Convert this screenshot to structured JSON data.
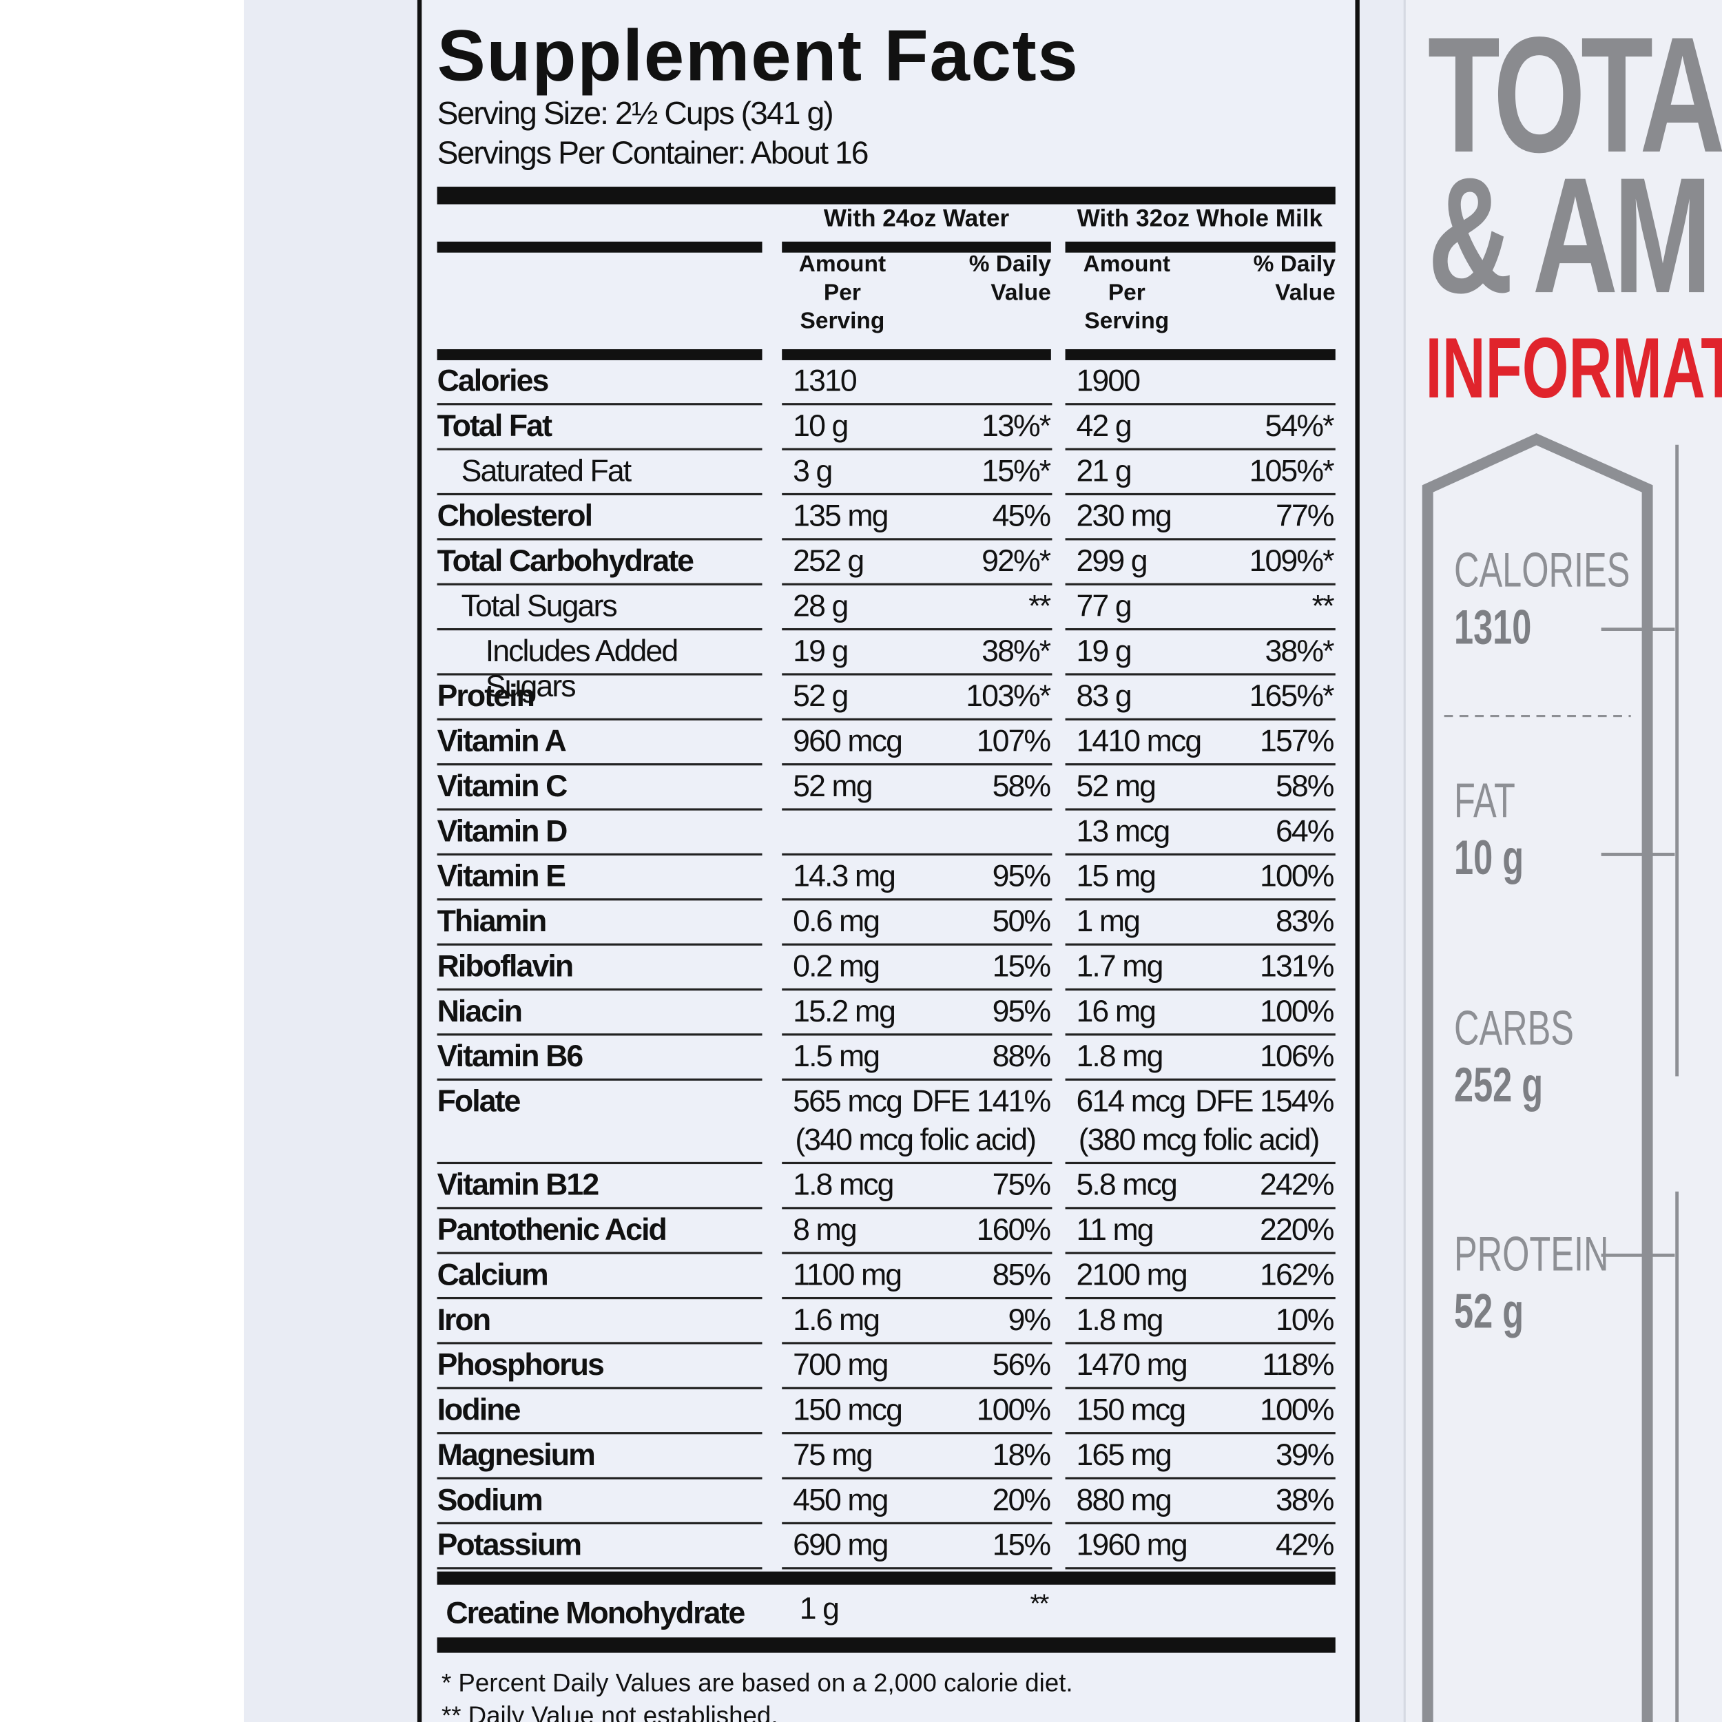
{
  "label": {
    "title": "Supplement Facts",
    "serving_size": "Serving Size: 2½ Cups (341 g)",
    "servings": "Servings Per Container: About 16",
    "columns": [
      "With 24oz Water",
      "With 32oz Whole Milk"
    ],
    "amount_header": "Amount Per Serving",
    "dv_header": "% Daily Value",
    "rows": [
      {
        "name": "Calories",
        "level": 0,
        "w_amt": "1310",
        "m_amt": "1900"
      },
      {
        "name": "Total Fat",
        "level": 0,
        "w_amt": "10 g",
        "w_dv": "13%*",
        "m_amt": "42 g",
        "m_dv": "54%*"
      },
      {
        "name": "Saturated Fat",
        "level": 1,
        "w_amt": "3 g",
        "w_dv": "15%*",
        "m_amt": "21 g",
        "m_dv": "105%*"
      },
      {
        "name": "Cholesterol",
        "level": 0,
        "w_amt": "135 mg",
        "w_dv": "45%",
        "m_amt": "230 mg",
        "m_dv": "77%"
      },
      {
        "name": "Total Carbohydrate",
        "level": 0,
        "w_amt": "252 g",
        "w_dv": "92%*",
        "m_amt": "299 g",
        "m_dv": "109%*"
      },
      {
        "name": "Total Sugars",
        "level": 1,
        "w_amt": "28 g",
        "w_dv": "**",
        "m_amt": "77 g",
        "m_dv": "**"
      },
      {
        "name": "Includes Added Sugars",
        "level": 2,
        "w_amt": "19 g",
        "w_dv": "38%*",
        "m_amt": "19 g",
        "m_dv": "38%*"
      },
      {
        "name": "Protein",
        "level": 0,
        "w_amt": "52 g",
        "w_dv": "103%*",
        "m_amt": "83 g",
        "m_dv": "165%*"
      },
      {
        "name": "Vitamin A",
        "level": 0,
        "w_amt": "960 mcg",
        "w_dv": "107%",
        "m_amt": "1410 mcg",
        "m_dv": "157%"
      },
      {
        "name": "Vitamin C",
        "level": 0,
        "w_amt": "52 mg",
        "w_dv": "58%",
        "m_amt": "52 mg",
        "m_dv": "58%"
      },
      {
        "name": "Vitamin D",
        "level": 0,
        "m_amt": "13 mcg",
        "m_dv": "64%"
      },
      {
        "name": "Vitamin E",
        "level": 0,
        "w_amt": "14.3 mg",
        "w_dv": "95%",
        "m_amt": "15 mg",
        "m_dv": "100%"
      },
      {
        "name": "Thiamin",
        "level": 0,
        "w_amt": "0.6 mg",
        "w_dv": "50%",
        "m_amt": "1 mg",
        "m_dv": "83%"
      },
      {
        "name": "Riboflavin",
        "level": 0,
        "w_amt": "0.2 mg",
        "w_dv": "15%",
        "m_amt": "1.7 mg",
        "m_dv": "131%"
      },
      {
        "name": "Niacin",
        "level": 0,
        "w_amt": "15.2 mg",
        "w_dv": "95%",
        "m_amt": "16 mg",
        "m_dv": "100%"
      },
      {
        "name": "Vitamin B6",
        "level": 0,
        "w_amt": "1.5 mg",
        "w_dv": "88%",
        "m_amt": "1.8 mg",
        "m_dv": "106%"
      },
      {
        "name": "Folate",
        "level": 0,
        "w_amt": "565 mcg",
        "w_dv": "DFE 141%",
        "w_note": "(340 mcg folic acid)",
        "m_amt": "614 mcg",
        "m_dv": "DFE 154%",
        "m_note": "(380 mcg folic acid)"
      },
      {
        "name": "Vitamin B12",
        "level": 0,
        "w_amt": "1.8 mcg",
        "w_dv": "75%",
        "m_amt": "5.8 mcg",
        "m_dv": "242%"
      },
      {
        "name": "Pantothenic Acid",
        "level": 0,
        "w_amt": "8 mg",
        "w_dv": "160%",
        "m_amt": "11 mg",
        "m_dv": "220%"
      },
      {
        "name": "Calcium",
        "level": 0,
        "w_amt": "1100 mg",
        "w_dv": "85%",
        "m_amt": "2100 mg",
        "m_dv": "162%"
      },
      {
        "name": "Iron",
        "level": 0,
        "w_amt": "1.6 mg",
        "w_dv": "9%",
        "m_amt": "1.8 mg",
        "m_dv": "10%"
      },
      {
        "name": "Phosphorus",
        "level": 0,
        "w_amt": "700 mg",
        "w_dv": "56%",
        "m_amt": "1470 mg",
        "m_dv": "118%"
      },
      {
        "name": "Iodine",
        "level": 0,
        "w_amt": "150 mcg",
        "w_dv": "100%",
        "m_amt": "150 mcg",
        "m_dv": "100%"
      },
      {
        "name": "Magnesium",
        "level": 0,
        "w_amt": "75 mg",
        "w_dv": "18%",
        "m_amt": "165 mg",
        "m_dv": "39%"
      },
      {
        "name": "Sodium",
        "level": 0,
        "w_amt": "450 mg",
        "w_dv": "20%",
        "m_amt": "880 mg",
        "m_dv": "38%"
      },
      {
        "name": "Potassium",
        "level": 0,
        "w_amt": "690 mg",
        "w_dv": "15%",
        "m_amt": "1960 mg",
        "m_dv": "42%"
      }
    ],
    "creatine": {
      "name": "Creatine Monohydrate",
      "amount": "1 g",
      "dv": "**"
    },
    "footnotes": [
      "* Percent Daily Values are based on a 2,000 calorie diet.",
      "** Daily Value not established."
    ]
  },
  "side_panel": {
    "heading": [
      "TOTAL",
      "& AM"
    ],
    "subheading": "INFORMATI",
    "stats": [
      {
        "label": "CALORIES",
        "value": "1310"
      },
      {
        "label": "FAT",
        "value": "10 g"
      },
      {
        "label": "CARBS",
        "value": "252 g"
      },
      {
        "label": "PROTEIN",
        "value": "52 g"
      }
    ]
  }
}
